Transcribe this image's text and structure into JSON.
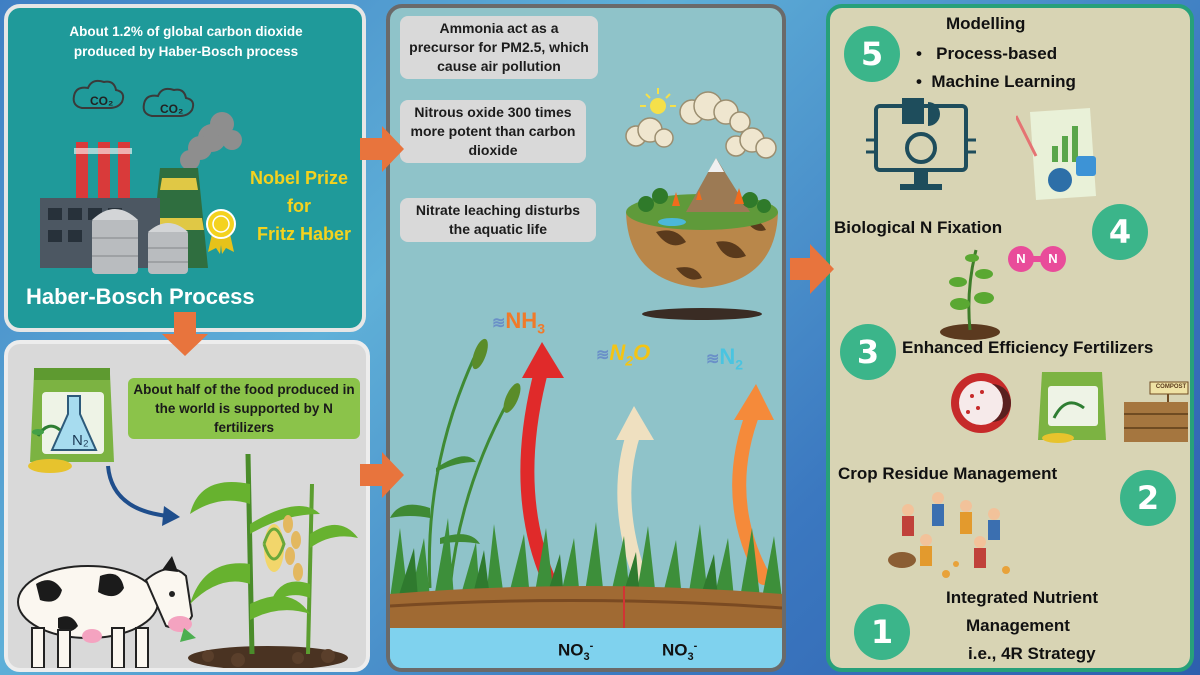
{
  "haber": {
    "fact": "About 1.2% of global carbon dioxide produced by Haber-Bosch process",
    "co2_label_1": "CO₂",
    "co2_label_2": "CO₂",
    "nobel_line1": "Nobel Prize",
    "nobel_line2": "for",
    "nobel_line3": "Fritz Haber",
    "title": "Haber-Bosch Process"
  },
  "fertilizer": {
    "fact": "About half of the food produced in the world is supported by N fertilizers",
    "bag_label": "N₂"
  },
  "impacts": {
    "ammonia": "Ammonia act as a precursor for PM2.5, which cause air pollution",
    "nitrous": "Nitrous oxide 300 times more potent than carbon dioxide",
    "nitrate": "Nitrate leaching disturbs the aquatic life"
  },
  "emissions": {
    "nh3_base": "NH",
    "nh3_sub": "3",
    "n2o_a": "N",
    "n2o_sub": "2",
    "n2o_b": "O",
    "n2_base": "N",
    "n2_sub": "2",
    "no3_1_base": "NO",
    "no3_1_sub": "3",
    "no3_1_sup": "-",
    "no3_2_base": "NO",
    "no3_2_sub": "3",
    "no3_2_sup": "-"
  },
  "strategies": {
    "s5_num": "5",
    "s5_title": "Modelling",
    "s5_item1": "Process-based",
    "s5_item2": "Machine Learning",
    "s4_num": "4",
    "s4_title": "Biological N Fixation",
    "s4_molecule_1": "N",
    "s4_molecule_2": "N",
    "s3_num": "3",
    "s3_title": "Enhanced Efficiency Fertilizers",
    "s3_compost": "COMPOST",
    "s2_num": "2",
    "s2_title": "Crop Residue Management",
    "s1_num": "1",
    "s1_line1": "Integrated Nutrient",
    "s1_line2": "Management",
    "s1_line3": "i.e., 4R Strategy"
  },
  "colors": {
    "teal_panel": "#1f9a9a",
    "nobel_yellow": "#f4d21e",
    "number_green": "#3bb58a",
    "flow_arrow": "#e8743d",
    "nh3": "#f07a2a",
    "n2o": "#f4c414",
    "n2": "#4ac4e0"
  }
}
